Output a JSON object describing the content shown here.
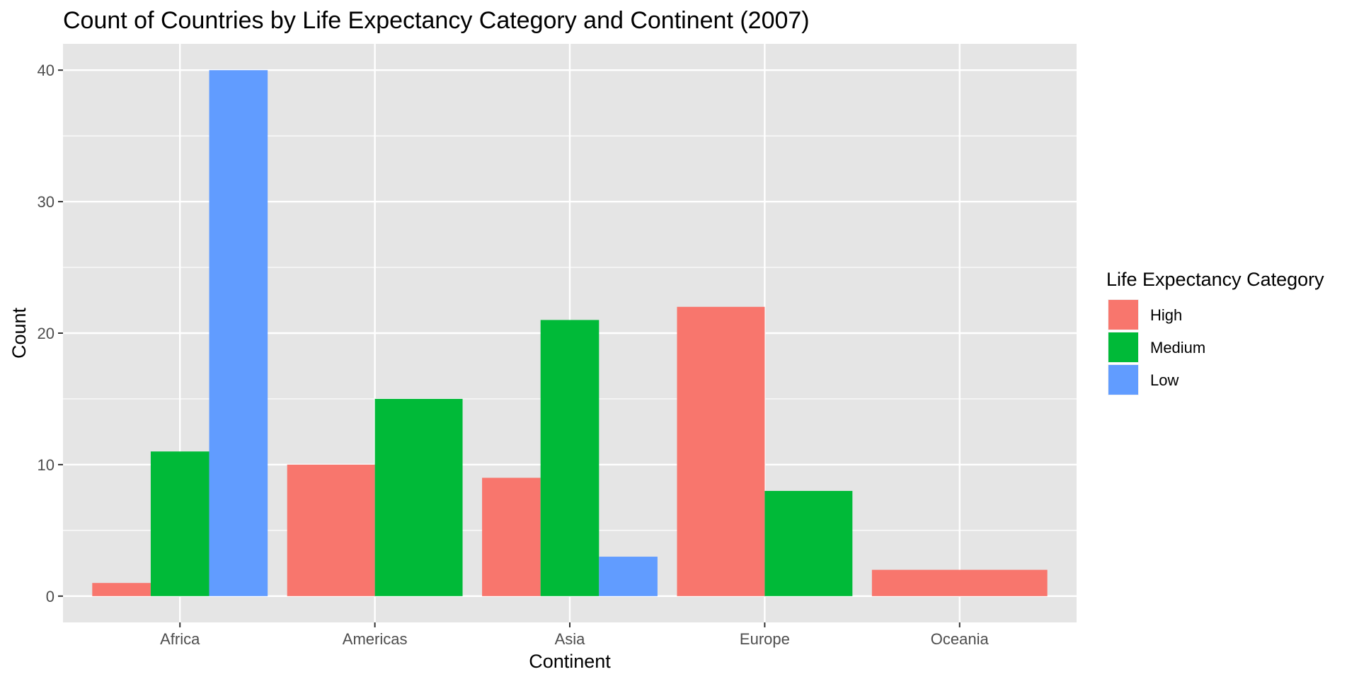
{
  "chart_data": {
    "type": "bar",
    "title": "Count of Countries by Life Expectancy Category and Continent (2007)",
    "xlabel": "Continent",
    "ylabel": "Count",
    "categories": [
      "Africa",
      "Americas",
      "Asia",
      "Europe",
      "Oceania"
    ],
    "series": [
      {
        "name": "High",
        "color": "#F8766D",
        "values": [
          1,
          10,
          9,
          22,
          2
        ]
      },
      {
        "name": "Medium",
        "color": "#00BA38",
        "values": [
          11,
          15,
          21,
          8,
          0
        ]
      },
      {
        "name": "Low",
        "color": "#619CFF",
        "values": [
          40,
          0,
          3,
          0,
          0
        ]
      }
    ],
    "ylim": [
      -2,
      42
    ],
    "yticks": [
      0,
      10,
      20,
      30,
      40
    ],
    "grid": true,
    "legend": {
      "title": "Life Expectancy Category",
      "position": "right",
      "entries": [
        "High",
        "Medium",
        "Low"
      ]
    },
    "panel_background": "#E5E5E5",
    "grid_color": "#FFFFFF"
  }
}
